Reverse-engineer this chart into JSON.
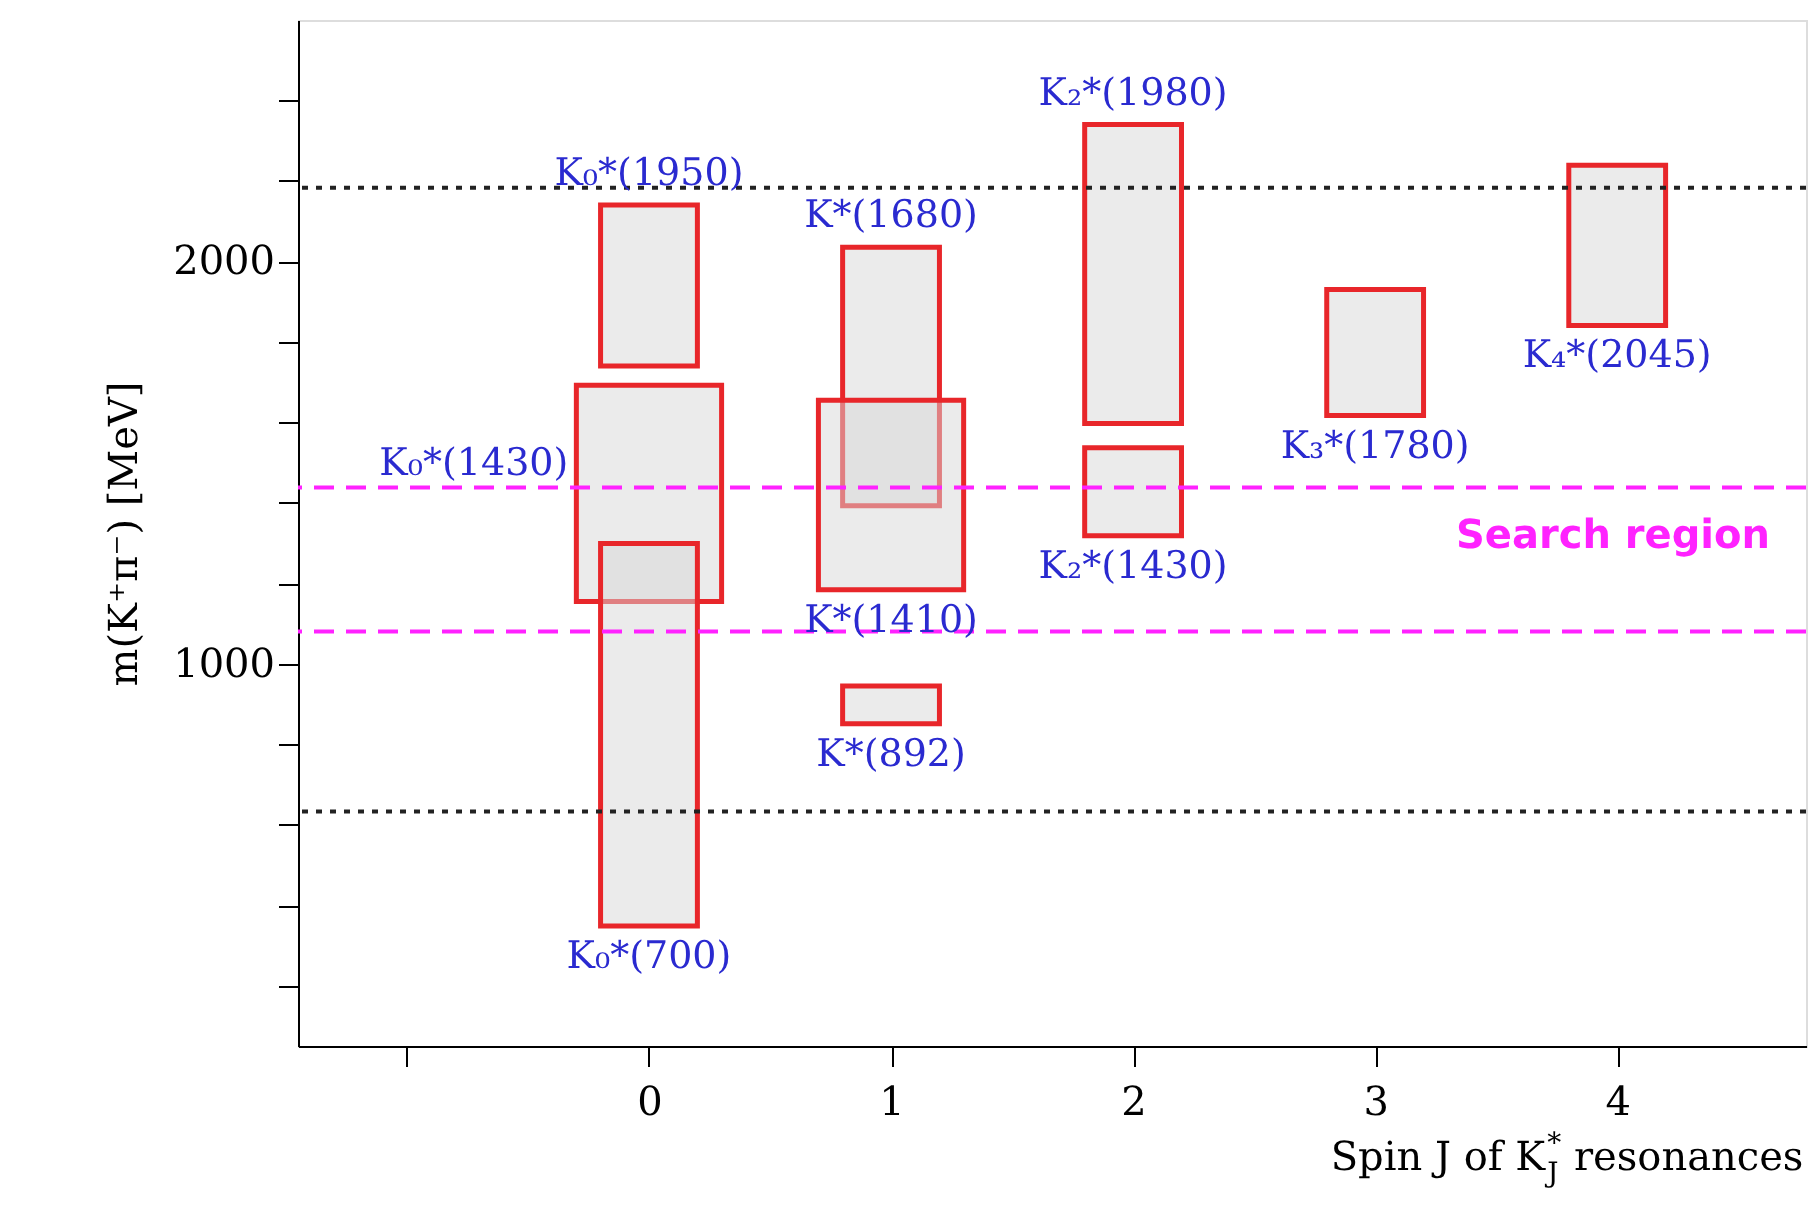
{
  "chart_data": {
    "type": "bar",
    "xlabel": "Spin J of K$_{J}$$^{*}$ resonances",
    "ylabel": "m(K⁺π⁻) [MeV]",
    "series": [
      {
        "name": "K₀*(1950)",
        "color": "#e8262a",
        "x": [
          0
        ],
        "base": [
          1740
        ],
        "values": [
          400
        ]
      },
      {
        "name": "K₀*(1430)",
        "color": "#e8262a",
        "x": [
          0
        ],
        "base": [
          1155
        ],
        "values": [
          537
        ]
      },
      {
        "name": "K₀*(700)",
        "color": "#e8262a",
        "x": [
          0
        ],
        "base": [
          348
        ],
        "values": [
          951
        ]
      },
      {
        "name": "K*(1680)",
        "color": "#e8262a",
        "x": [
          1
        ],
        "base": [
          1393
        ],
        "values": [
          642
        ]
      },
      {
        "name": "K*(1410)",
        "color": "#e8262a",
        "x": [
          1
        ],
        "base": [
          1184
        ],
        "values": [
          471
        ]
      },
      {
        "name": "K*(892)",
        "color": "#e8262a",
        "x": [
          1
        ],
        "base": [
          851
        ],
        "values": [
          94
        ]
      },
      {
        "name": "K₂*(1980)",
        "color": "#e8262a",
        "x": [
          2
        ],
        "base": [
          1597
        ],
        "values": [
          743
        ]
      },
      {
        "name": "K₂*(1430)",
        "color": "#e8262a",
        "x": [
          2
        ],
        "base": [
          1318
        ],
        "values": [
          219
        ]
      },
      {
        "name": "K₃*(1780)",
        "color": "#e8262a",
        "x": [
          3
        ],
        "base": [
          1617
        ],
        "values": [
          313
        ]
      },
      {
        "name": "K₄*(2045)",
        "color": "#e8262a",
        "x": [
          4
        ],
        "base": [
          1841
        ],
        "values": [
          398
        ]
      }
    ],
    "xlim": [
      -1.45,
      4.78
    ],
    "ylim": [
      50,
      2600
    ],
    "xticks": [
      {
        "value": -1,
        "label": null
      },
      0,
      1,
      2,
      3,
      4
    ],
    "yticks": [
      {
        "value": 200,
        "label": null
      },
      {
        "value": 400,
        "label": null
      },
      {
        "value": 600,
        "label": null
      },
      {
        "value": 800,
        "label": null
      },
      1000,
      {
        "value": 1200,
        "label": null
      },
      {
        "value": 1400,
        "label": null
      },
      {
        "value": 1600,
        "label": null
      },
      {
        "value": 1800,
        "label": null
      },
      2000,
      {
        "value": 2200,
        "label": null
      },
      {
        "value": 2400,
        "label": null
      }
    ],
    "ref_lines": [
      {
        "axis": "y",
        "value": 2183,
        "color": "#222222",
        "line_style": "dotted"
      },
      {
        "axis": "y",
        "value": 633,
        "color": "#222222",
        "line_style": "dotted"
      },
      {
        "axis": "y",
        "value": 1438,
        "color": "#ff22ff",
        "line_style": "dashed",
        "label": "Search region"
      },
      {
        "axis": "y",
        "value": 1080,
        "color": "#ff22ff",
        "line_style": "dashed"
      }
    ],
    "grid": false
  }
}
